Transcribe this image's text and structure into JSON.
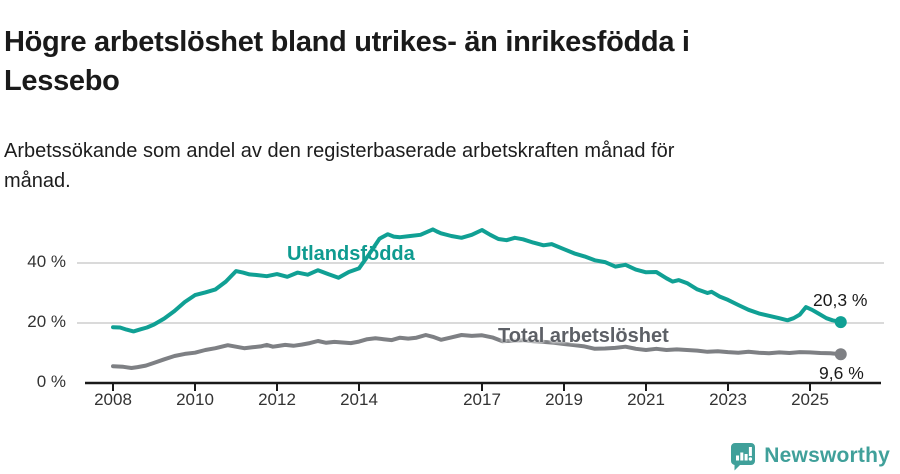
{
  "header": {
    "title": "Högre arbetslöshet bland utrikes- än inrikesfödda i Lessebo",
    "subtitle": "Arbetssökande som andel av den registerbaserade arbetskraften månad för månad."
  },
  "chart_data": {
    "type": "line",
    "title": "Högre arbetslöshet bland utrikes- än inrikesfödda i Lessebo",
    "subtitle": "Arbetssökande som andel av den registerbaserade arbetskraften månad för månad.",
    "x_unit": "year (decimal years, monthly observations)",
    "y_unit": "percent of register-based labour force",
    "xlim": [
      2007.3,
      2026.4
    ],
    "ylim": [
      0,
      56
    ],
    "grid": "horizontal gridlines at 20 and 40, dark baseline at 0",
    "legend_position": "inline labels next to lines",
    "xticks": [
      {
        "x": 2008,
        "label": "2008"
      },
      {
        "x": 2010,
        "label": "2010"
      },
      {
        "x": 2012,
        "label": "2012"
      },
      {
        "x": 2014,
        "label": "2014"
      },
      {
        "x": 2017,
        "label": "2017"
      },
      {
        "x": 2019,
        "label": "2019"
      },
      {
        "x": 2021,
        "label": "2021"
      },
      {
        "x": 2023,
        "label": "2023"
      },
      {
        "x": 2025,
        "label": "2025"
      }
    ],
    "yticks": [
      {
        "v": 40,
        "label": "40 %"
      },
      {
        "v": 20,
        "label": "20 %"
      },
      {
        "v": 0,
        "label": "0 %"
      }
    ],
    "series": [
      {
        "name": "Utlandsfödda",
        "color": "#10a094",
        "label_color": "#0f9b90",
        "end_label": "20,3 %",
        "last_value": 20.3,
        "points": [
          [
            2008.0,
            18.6
          ],
          [
            2008.17,
            18.5
          ],
          [
            2008.33,
            17.8
          ],
          [
            2008.5,
            17.2
          ],
          [
            2008.67,
            17.9
          ],
          [
            2008.83,
            18.5
          ],
          [
            2009.0,
            19.5
          ],
          [
            2009.25,
            21.5
          ],
          [
            2009.5,
            24.0
          ],
          [
            2009.75,
            27.0
          ],
          [
            2010.0,
            29.3
          ],
          [
            2010.25,
            30.2
          ],
          [
            2010.5,
            31.2
          ],
          [
            2010.75,
            33.8
          ],
          [
            2011.0,
            37.3
          ],
          [
            2011.17,
            36.8
          ],
          [
            2011.33,
            36.2
          ],
          [
            2011.5,
            36.0
          ],
          [
            2011.75,
            35.6
          ],
          [
            2012.0,
            36.3
          ],
          [
            2012.25,
            35.4
          ],
          [
            2012.5,
            36.8
          ],
          [
            2012.75,
            36.1
          ],
          [
            2013.0,
            37.6
          ],
          [
            2013.25,
            36.3
          ],
          [
            2013.5,
            35.1
          ],
          [
            2013.75,
            37.0
          ],
          [
            2014.0,
            38.2
          ],
          [
            2014.25,
            43.0
          ],
          [
            2014.5,
            48.1
          ],
          [
            2014.7,
            49.6
          ],
          [
            2014.85,
            48.8
          ],
          [
            2015.0,
            48.6
          ],
          [
            2015.25,
            49.0
          ],
          [
            2015.5,
            49.4
          ],
          [
            2015.8,
            51.2
          ],
          [
            2015.9,
            50.5
          ],
          [
            2016.0,
            49.9
          ],
          [
            2016.25,
            49.0
          ],
          [
            2016.5,
            48.4
          ],
          [
            2016.75,
            49.4
          ],
          [
            2017.0,
            51.0
          ],
          [
            2017.2,
            49.4
          ],
          [
            2017.4,
            48.0
          ],
          [
            2017.6,
            47.6
          ],
          [
            2017.8,
            48.4
          ],
          [
            2018.0,
            47.9
          ],
          [
            2018.25,
            46.8
          ],
          [
            2018.5,
            45.9
          ],
          [
            2018.7,
            46.3
          ],
          [
            2019.0,
            44.6
          ],
          [
            2019.25,
            43.2
          ],
          [
            2019.5,
            42.2
          ],
          [
            2019.75,
            40.9
          ],
          [
            2020.0,
            40.3
          ],
          [
            2020.25,
            38.8
          ],
          [
            2020.5,
            39.4
          ],
          [
            2020.75,
            37.8
          ],
          [
            2021.0,
            36.9
          ],
          [
            2021.25,
            37.0
          ],
          [
            2021.5,
            34.9
          ],
          [
            2021.65,
            33.8
          ],
          [
            2021.8,
            34.3
          ],
          [
            2022.0,
            33.3
          ],
          [
            2022.25,
            31.2
          ],
          [
            2022.5,
            30.0
          ],
          [
            2022.6,
            30.4
          ],
          [
            2022.8,
            28.8
          ],
          [
            2023.0,
            27.7
          ],
          [
            2023.25,
            26.0
          ],
          [
            2023.5,
            24.4
          ],
          [
            2023.75,
            23.2
          ],
          [
            2024.0,
            22.4
          ],
          [
            2024.25,
            21.6
          ],
          [
            2024.45,
            20.9
          ],
          [
            2024.6,
            21.6
          ],
          [
            2024.75,
            22.8
          ],
          [
            2024.9,
            25.3
          ],
          [
            2025.05,
            24.4
          ],
          [
            2025.2,
            23.2
          ],
          [
            2025.4,
            21.6
          ],
          [
            2025.55,
            20.9
          ],
          [
            2025.65,
            20.6
          ],
          [
            2025.75,
            20.3
          ]
        ]
      },
      {
        "name": "Total arbetslöshet",
        "color": "#7e8084",
        "label_color": "#5d6066",
        "end_label": "9,6 %",
        "last_value": 9.6,
        "points": [
          [
            2008.0,
            5.6
          ],
          [
            2008.25,
            5.4
          ],
          [
            2008.45,
            5.0
          ],
          [
            2008.6,
            5.3
          ],
          [
            2008.8,
            5.8
          ],
          [
            2009.0,
            6.7
          ],
          [
            2009.25,
            7.9
          ],
          [
            2009.5,
            9.0
          ],
          [
            2009.75,
            9.7
          ],
          [
            2010.0,
            10.1
          ],
          [
            2010.25,
            11.0
          ],
          [
            2010.5,
            11.6
          ],
          [
            2010.8,
            12.6
          ],
          [
            2011.0,
            12.1
          ],
          [
            2011.2,
            11.6
          ],
          [
            2011.4,
            11.9
          ],
          [
            2011.6,
            12.2
          ],
          [
            2011.75,
            12.7
          ],
          [
            2011.9,
            12.1
          ],
          [
            2012.0,
            12.3
          ],
          [
            2012.2,
            12.7
          ],
          [
            2012.4,
            12.4
          ],
          [
            2012.6,
            12.8
          ],
          [
            2012.8,
            13.3
          ],
          [
            2013.0,
            14.0
          ],
          [
            2013.2,
            13.4
          ],
          [
            2013.4,
            13.7
          ],
          [
            2013.6,
            13.5
          ],
          [
            2013.8,
            13.3
          ],
          [
            2014.0,
            13.8
          ],
          [
            2014.2,
            14.6
          ],
          [
            2014.4,
            14.9
          ],
          [
            2014.6,
            14.6
          ],
          [
            2014.8,
            14.3
          ],
          [
            2015.0,
            15.1
          ],
          [
            2015.2,
            14.8
          ],
          [
            2015.4,
            15.1
          ],
          [
            2015.63,
            16.0
          ],
          [
            2015.8,
            15.4
          ],
          [
            2016.0,
            14.4
          ],
          [
            2016.25,
            15.2
          ],
          [
            2016.5,
            16.0
          ],
          [
            2016.75,
            15.7
          ],
          [
            2017.0,
            15.9
          ],
          [
            2017.25,
            15.2
          ],
          [
            2017.5,
            13.9
          ],
          [
            2017.75,
            14.1
          ],
          [
            2018.0,
            14.3
          ],
          [
            2018.25,
            13.9
          ],
          [
            2018.5,
            13.7
          ],
          [
            2018.75,
            13.4
          ],
          [
            2019.0,
            13.0
          ],
          [
            2019.25,
            12.6
          ],
          [
            2019.5,
            12.2
          ],
          [
            2019.75,
            11.4
          ],
          [
            2020.0,
            11.5
          ],
          [
            2020.25,
            11.7
          ],
          [
            2020.5,
            12.1
          ],
          [
            2020.75,
            11.4
          ],
          [
            2021.0,
            11.0
          ],
          [
            2021.25,
            11.4
          ],
          [
            2021.5,
            11.0
          ],
          [
            2021.75,
            11.2
          ],
          [
            2022.0,
            11.0
          ],
          [
            2022.25,
            10.8
          ],
          [
            2022.5,
            10.4
          ],
          [
            2022.75,
            10.6
          ],
          [
            2023.0,
            10.3
          ],
          [
            2023.25,
            10.1
          ],
          [
            2023.5,
            10.4
          ],
          [
            2023.75,
            10.1
          ],
          [
            2024.0,
            9.9
          ],
          [
            2024.25,
            10.2
          ],
          [
            2024.5,
            10.0
          ],
          [
            2024.75,
            10.3
          ],
          [
            2025.0,
            10.2
          ],
          [
            2025.25,
            10.0
          ],
          [
            2025.5,
            9.9
          ],
          [
            2025.75,
            9.6
          ]
        ]
      }
    ]
  },
  "footer": {
    "brand": "Newsworthy",
    "brand_color": "#40a09a",
    "logo_icon": "newsworthy-barchart-pin-icon"
  }
}
